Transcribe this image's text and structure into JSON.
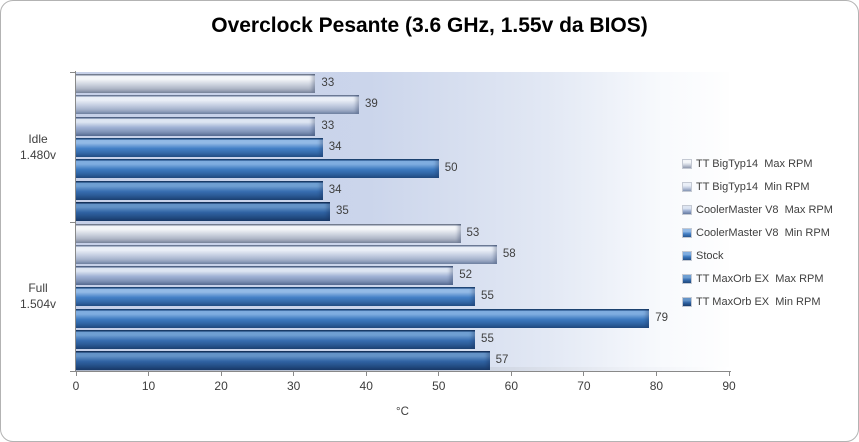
{
  "title": "Overclock Pesante (3.6 GHz, 1.55v da BIOS)",
  "chart_data": {
    "type": "bar",
    "orientation": "horizontal",
    "title": "Overclock Pesante (3.6 GHz, 1.55v da BIOS)",
    "xlabel": "°C",
    "xlim": [
      0,
      90
    ],
    "xticks": [
      0,
      10,
      20,
      30,
      40,
      50,
      60,
      70,
      80,
      90
    ],
    "grid": false,
    "legend_position": "right",
    "categories": [
      {
        "line1": "Idle",
        "line2": "1.480v"
      },
      {
        "line1": "Full",
        "line2": "1.504v"
      }
    ],
    "series": [
      {
        "name": "TT BigTyp14  Max RPM",
        "values": [
          33,
          53
        ],
        "color": {
          "base": "#cdd3df",
          "hi": "#f4f6f9",
          "dark": "#8f99ad"
        }
      },
      {
        "name": "TT BigTyp14  Min RPM",
        "values": [
          39,
          58
        ],
        "color": {
          "base": "#c3cde1",
          "hi": "#eaeff7",
          "dark": "#8495b4"
        }
      },
      {
        "name": "CoolerMaster V8  Max RPM",
        "values": [
          33,
          52
        ],
        "color": {
          "base": "#9fb1d4",
          "hi": "#dde5f2",
          "dark": "#64799f"
        }
      },
      {
        "name": "CoolerMaster V8  Min RPM",
        "values": [
          34,
          55
        ],
        "color": {
          "base": "#4480c6",
          "hi": "#93bae6",
          "dark": "#27568f"
        }
      },
      {
        "name": "Stock",
        "values": [
          50,
          79
        ],
        "color": {
          "base": "#3c79bf",
          "hi": "#7fade0",
          "dark": "#235088"
        }
      },
      {
        "name": "TT MaxOrb EX  Max RPM",
        "values": [
          34,
          55
        ],
        "color": {
          "base": "#376db0",
          "hi": "#6f9fd2",
          "dark": "#1f477a"
        }
      },
      {
        "name": "TT MaxOrb EX  Min RPM",
        "values": [
          35,
          57
        ],
        "color": {
          "base": "#2f62a2",
          "hi": "#6493c7",
          "dark": "#1a3d6d"
        }
      }
    ]
  }
}
